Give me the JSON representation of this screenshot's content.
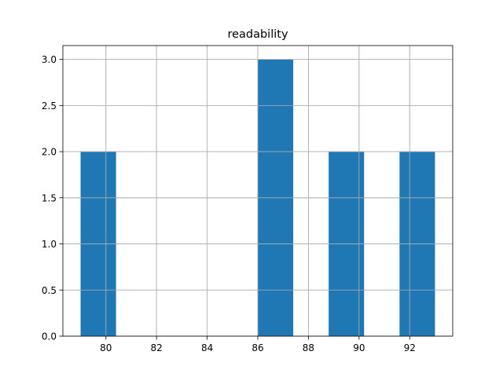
{
  "chart_data": {
    "type": "bar",
    "title": "readability",
    "xlabel": "",
    "ylabel": "",
    "xlim": [
      78.3,
      93.7
    ],
    "ylim": [
      0,
      3.15
    ],
    "grid": true,
    "bar_color": "#1f77b4",
    "grid_color": "#b0b0b0",
    "bins": [
      {
        "x0": 79.0,
        "x1": 80.4,
        "count": 2
      },
      {
        "x0": 80.4,
        "x1": 81.8,
        "count": 0
      },
      {
        "x0": 81.8,
        "x1": 83.2,
        "count": 0
      },
      {
        "x0": 83.2,
        "x1": 84.6,
        "count": 0
      },
      {
        "x0": 84.6,
        "x1": 86.0,
        "count": 0
      },
      {
        "x0": 86.0,
        "x1": 87.4,
        "count": 3
      },
      {
        "x0": 87.4,
        "x1": 88.8,
        "count": 0
      },
      {
        "x0": 88.8,
        "x1": 90.2,
        "count": 2
      },
      {
        "x0": 90.2,
        "x1": 91.6,
        "count": 0
      },
      {
        "x0": 91.6,
        "x1": 93.0,
        "count": 2
      }
    ],
    "x_ticks": [
      80,
      82,
      84,
      86,
      88,
      90,
      92
    ],
    "x_tick_labels": [
      "80",
      "82",
      "84",
      "86",
      "88",
      "90",
      "92"
    ],
    "y_ticks": [
      0,
      0.5,
      1.0,
      1.5,
      2.0,
      2.5,
      3.0
    ],
    "y_tick_labels": [
      "0.0",
      "0.5",
      "1.0",
      "1.5",
      "2.0",
      "2.5",
      "3.0"
    ]
  }
}
